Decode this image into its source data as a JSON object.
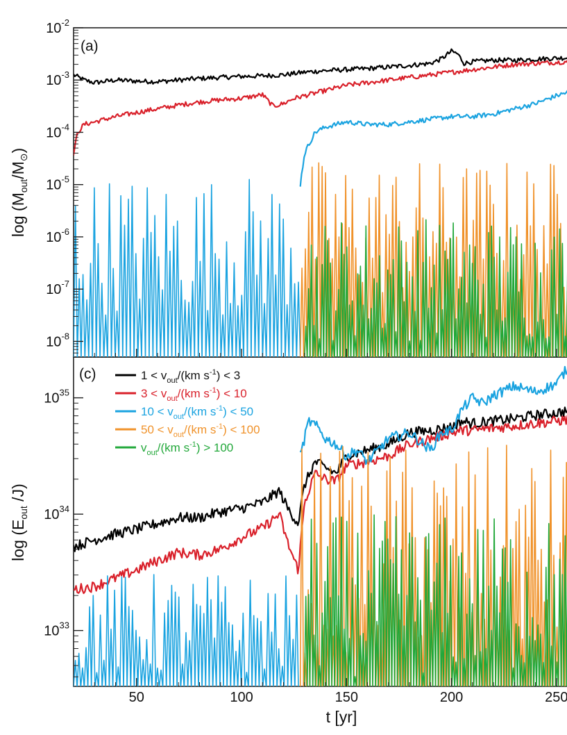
{
  "chart_data": [
    {
      "type": "line",
      "panel": "(a)",
      "xlim": [
        20,
        258
      ],
      "ylim_log10": [
        -8.3,
        -2
      ],
      "y_ticks": [
        {
          "exp": -2,
          "label": "10-2",
          "base": "10",
          "sup": "-2"
        },
        {
          "exp": -3,
          "label": "10-3",
          "base": "10",
          "sup": "-3"
        },
        {
          "exp": -4,
          "label": "10-4",
          "base": "10",
          "sup": "-4"
        },
        {
          "exp": -5,
          "label": "10-5",
          "base": "10",
          "sup": "-5"
        },
        {
          "exp": -6,
          "label": "10-6",
          "base": "10",
          "sup": "-6"
        },
        {
          "exp": -7,
          "label": "10-7",
          "base": "10",
          "sup": "-7"
        },
        {
          "exp": -8,
          "label": "10-8",
          "base": "10",
          "sup": "-8"
        }
      ],
      "ylabel": {
        "pre": "log (M",
        "sub": "out",
        "mid": "/M",
        "sub2": "⊙",
        "post": ")"
      },
      "series": [
        {
          "name": "1 < vout/(km s-1) < 3",
          "color": "#000000",
          "x": [
            20,
            25,
            30,
            40,
            50,
            60,
            70,
            80,
            90,
            100,
            110,
            120,
            130,
            140,
            150,
            160,
            170,
            180,
            190,
            195,
            200,
            203,
            206,
            210,
            220,
            230,
            240,
            250,
            258
          ],
          "log_y": [
            -2.9,
            -3.0,
            -3.05,
            -3.0,
            -3.02,
            -3.03,
            -3.0,
            -2.97,
            -2.95,
            -2.93,
            -2.92,
            -2.9,
            -2.85,
            -2.82,
            -2.8,
            -2.78,
            -2.75,
            -2.72,
            -2.68,
            -2.6,
            -2.45,
            -2.5,
            -2.68,
            -2.65,
            -2.62,
            -2.62,
            -2.6,
            -2.58,
            -2.57
          ]
        },
        {
          "name": "3 < vout/(km s-1) < 10",
          "color": "#d9202a",
          "x": [
            20,
            22,
            25,
            30,
            40,
            50,
            60,
            70,
            80,
            90,
            100,
            110,
            115,
            120,
            125,
            130,
            140,
            150,
            160,
            170,
            180,
            190,
            200,
            210,
            220,
            230,
            240,
            250,
            258
          ],
          "log_y": [
            -4.4,
            -4.0,
            -3.85,
            -3.8,
            -3.7,
            -3.62,
            -3.55,
            -3.48,
            -3.42,
            -3.38,
            -3.35,
            -3.28,
            -3.5,
            -3.45,
            -3.35,
            -3.3,
            -3.2,
            -3.1,
            -3.05,
            -3.0,
            -2.95,
            -2.9,
            -2.85,
            -2.8,
            -2.75,
            -2.7,
            -2.68,
            -2.66,
            -2.64
          ]
        },
        {
          "name": "10 < vout/(km s-1) < 50",
          "color": "#1aa3e0",
          "x": [
            128,
            130,
            135,
            140,
            150,
            160,
            170,
            180,
            190,
            200,
            210,
            220,
            230,
            240,
            250,
            258
          ],
          "log_y": [
            -5.0,
            -4.4,
            -4.0,
            -3.9,
            -3.8,
            -3.85,
            -3.85,
            -3.8,
            -3.75,
            -3.7,
            -3.7,
            -3.65,
            -3.55,
            -3.45,
            -3.3,
            -3.2
          ]
        }
      ]
    },
    {
      "type": "line",
      "panel": "(c)",
      "xlim": [
        20,
        258
      ],
      "ylim_log10": [
        32.52,
        35.35
      ],
      "x_ticks": [
        50,
        100,
        150,
        200,
        250
      ],
      "y_ticks": [
        {
          "exp": 35,
          "label": "1035",
          "base": "10",
          "sup": "35"
        },
        {
          "exp": 34,
          "label": "1034",
          "base": "10",
          "sup": "34"
        },
        {
          "exp": 33,
          "label": "1033",
          "base": "10",
          "sup": "33"
        }
      ],
      "xlabel": "t [yr]",
      "ylabel": {
        "pre": "log (E",
        "sub": "out",
        "post": " /J)"
      },
      "series": [
        {
          "name": "1 < vout/(km s-1) < 3",
          "color": "#000000",
          "x": [
            20,
            30,
            40,
            50,
            60,
            70,
            80,
            90,
            100,
            110,
            118,
            122,
            127,
            130,
            135,
            140,
            145,
            150,
            160,
            170,
            180,
            190,
            200,
            205,
            210,
            220,
            230,
            240,
            250,
            258
          ],
          "log_y": [
            33.72,
            33.78,
            33.83,
            33.87,
            33.92,
            33.97,
            33.97,
            34.02,
            34.05,
            34.1,
            34.2,
            34.05,
            33.92,
            34.25,
            34.45,
            34.4,
            34.35,
            34.5,
            34.55,
            34.6,
            34.7,
            34.72,
            34.75,
            34.8,
            34.78,
            34.8,
            34.82,
            34.85,
            34.87,
            34.9
          ]
        },
        {
          "name": "3 < vout/(km s-1) < 10",
          "color": "#d9202a",
          "x": [
            20,
            30,
            40,
            50,
            60,
            70,
            80,
            90,
            100,
            110,
            118,
            122,
            127,
            130,
            135,
            140,
            145,
            150,
            160,
            170,
            180,
            190,
            200,
            205,
            210,
            220,
            230,
            240,
            250,
            258
          ],
          "log_y": [
            33.35,
            33.38,
            33.45,
            33.52,
            33.6,
            33.67,
            33.65,
            33.7,
            33.8,
            33.88,
            34.0,
            33.75,
            33.52,
            34.1,
            34.35,
            34.3,
            34.28,
            34.42,
            34.45,
            34.5,
            34.6,
            34.65,
            34.7,
            34.72,
            34.72,
            34.74,
            34.76,
            34.78,
            34.8,
            34.82
          ]
        },
        {
          "name": "10 < vout/(km s-1) < 50",
          "color": "#1aa3e0",
          "x": [
            128,
            132,
            136,
            140,
            145,
            150,
            155,
            160,
            170,
            180,
            190,
            195,
            200,
            205,
            210,
            215,
            220,
            230,
            240,
            250,
            255,
            258
          ],
          "log_y": [
            34.5,
            34.8,
            34.75,
            34.65,
            34.6,
            34.5,
            34.55,
            34.45,
            34.65,
            34.7,
            34.55,
            34.7,
            34.72,
            34.9,
            35.0,
            34.95,
            35.02,
            35.1,
            35.05,
            35.12,
            35.25,
            35.3
          ]
        }
      ]
    }
  ],
  "legend": [
    {
      "color": "#000000",
      "pre": "1 < v",
      "sub": "out",
      "mid": "/(km s",
      "sup": "-1",
      "post": ") < 3"
    },
    {
      "color": "#d9202a",
      "pre": "3 < v",
      "sub": "out",
      "mid": "/(km s",
      "sup": "-1",
      "post": ") < 10"
    },
    {
      "color": "#1aa3e0",
      "pre": "10 < v",
      "sub": "out",
      "mid": "/(km s",
      "sup": "-1",
      "post": ") < 50"
    },
    {
      "color": "#f0922a",
      "pre": "50 < v",
      "sub": "out",
      "mid": "/(km s",
      "sup": "-1",
      "post": ") < 100"
    },
    {
      "color": "#22a83a",
      "pre": "v",
      "sub": "out",
      "mid": "/(km s",
      "sup": "-1",
      "post": ") > 100"
    }
  ]
}
